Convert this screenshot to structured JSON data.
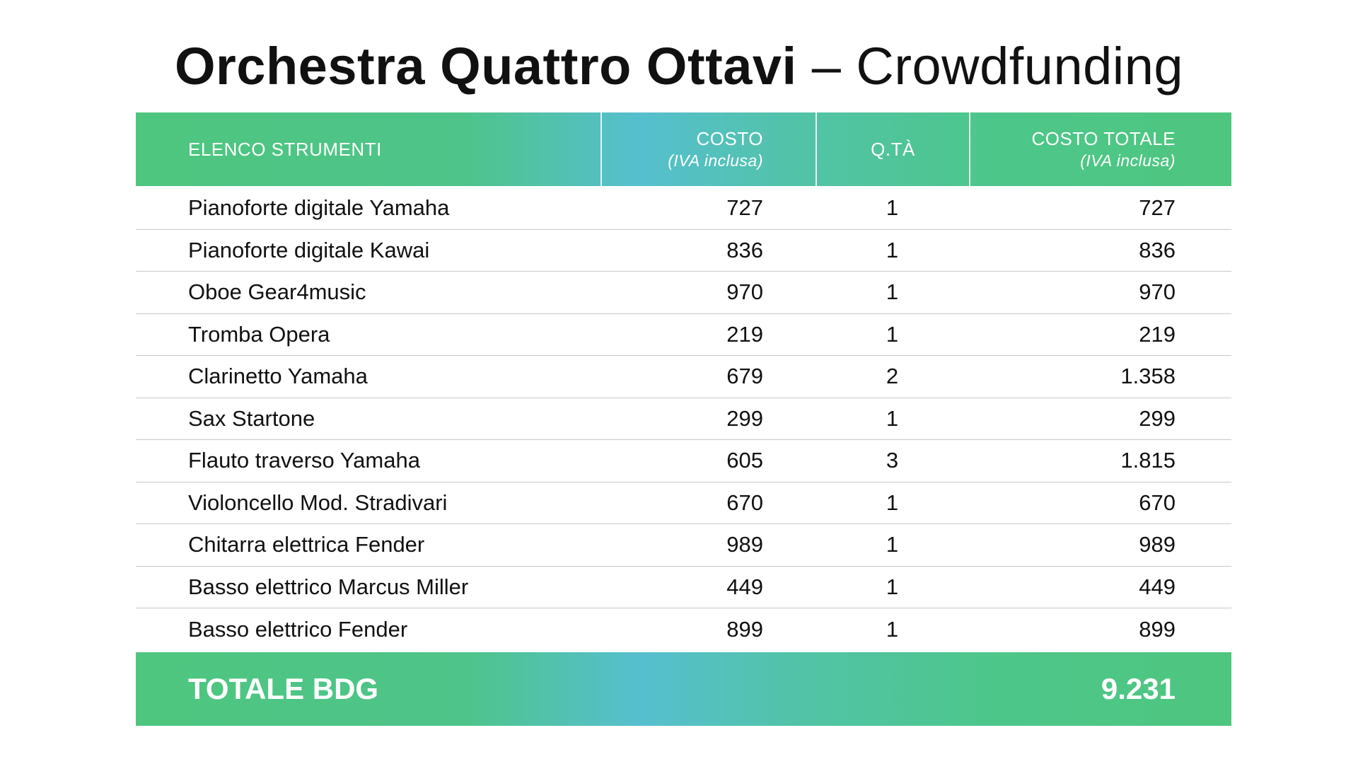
{
  "title": {
    "main": "Orchestra Quattro Ottavi",
    "separator": "–",
    "subtitle": "Crowdfunding"
  },
  "table": {
    "headers": {
      "name": "ELENCO STRUMENTI",
      "cost": "COSTO",
      "cost_note": "(IVA inclusa)",
      "qty": "Q.TÀ",
      "total": "COSTO TOTALE",
      "total_note": "(IVA inclusa)"
    },
    "rows": [
      {
        "name": "Pianoforte digitale Yamaha",
        "cost": "727",
        "qty": "1",
        "total": "727"
      },
      {
        "name": "Pianoforte digitale Kawai",
        "cost": "836",
        "qty": "1",
        "total": "836"
      },
      {
        "name": "Oboe Gear4music",
        "cost": "970",
        "qty": "1",
        "total": "970"
      },
      {
        "name": "Tromba Opera",
        "cost": "219",
        "qty": "1",
        "total": "219"
      },
      {
        "name": "Clarinetto Yamaha",
        "cost": "679",
        "qty": "2",
        "total": "1.358"
      },
      {
        "name": "Sax Startone",
        "cost": "299",
        "qty": "1",
        "total": "299"
      },
      {
        "name": "Flauto traverso Yamaha",
        "cost": "605",
        "qty": "3",
        "total": "1.815"
      },
      {
        "name": "Violoncello Mod. Stradivari",
        "cost": "670",
        "qty": "1",
        "total": "670"
      },
      {
        "name": "Chitarra elettrica Fender",
        "cost": "989",
        "qty": "1",
        "total": "989"
      },
      {
        "name": "Basso elettrico Marcus Miller",
        "cost": "449",
        "qty": "1",
        "total": "449"
      },
      {
        "name": "Basso elettrico Fender",
        "cost": "899",
        "qty": "1",
        "total": "899"
      }
    ],
    "footer": {
      "label": "TOTALE BDG",
      "value": "9.231"
    }
  },
  "colors": {
    "green": "#4ec67f",
    "teal": "#56bfcf",
    "row_divider": "#c8c8c8"
  }
}
